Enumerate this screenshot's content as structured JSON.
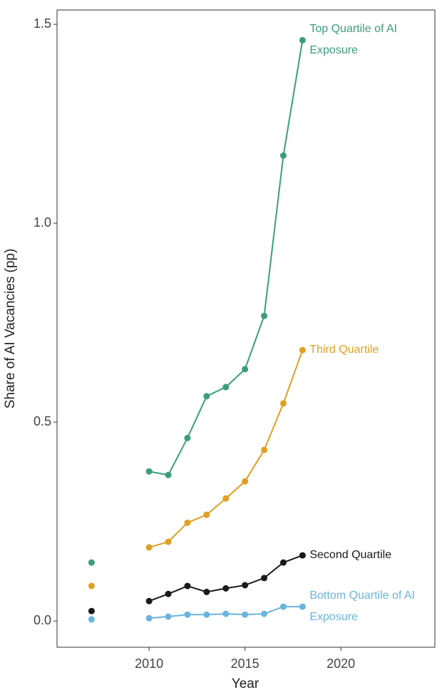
{
  "chart_data": {
    "type": "line",
    "x_label": "Year",
    "y_label": "Share of AI Vacancies (pp)",
    "x": [
      2007,
      2008,
      2009,
      2010,
      2011,
      2012,
      2013,
      2014,
      2015,
      2016,
      2017,
      2018
    ],
    "series": [
      {
        "name": "Top Quartile of AI Exposure",
        "color": "#3a9e7c",
        "values": [
          0.147,
          null,
          null,
          0.376,
          0.367,
          0.46,
          0.565,
          0.588,
          0.633,
          0.767,
          1.17,
          1.46
        ]
      },
      {
        "name": "Third Quartile",
        "color": "#e0a020",
        "values": [
          0.088,
          null,
          null,
          0.185,
          0.199,
          0.247,
          0.267,
          0.308,
          0.351,
          0.43,
          0.547,
          0.681
        ]
      },
      {
        "name": "Second Quartile",
        "color": "#1a1a1a",
        "values": [
          0.025,
          null,
          null,
          0.05,
          0.068,
          0.088,
          0.073,
          0.082,
          0.09,
          0.108,
          0.147,
          0.165
        ]
      },
      {
        "name": "Bottom Quartile of AI Exposure",
        "color": "#6ab4de",
        "values": [
          0.004,
          null,
          null,
          0.007,
          0.011,
          0.016,
          0.016,
          0.018,
          0.016,
          0.018,
          0.036,
          0.036
        ]
      }
    ],
    "xlim": [
      2005.2,
      2024.9
    ],
    "xticks": [
      2010,
      2015,
      2020
    ],
    "ylim": [
      -0.066,
      1.536
    ],
    "yticks": [
      {
        "value": 0,
        "label": "0.0"
      },
      0.5,
      {
        "value": 1,
        "label": "1.0"
      },
      1.5
    ],
    "grid": false
  }
}
